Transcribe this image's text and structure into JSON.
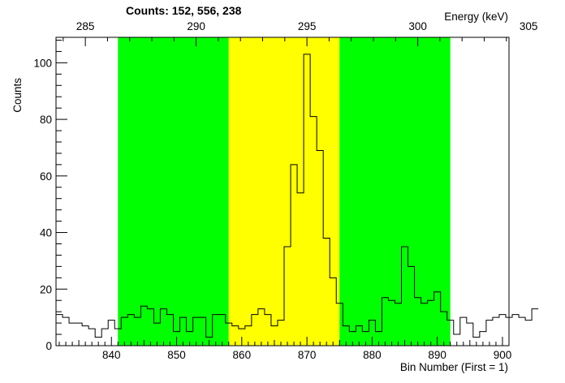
{
  "chart_data": {
    "type": "histogram",
    "title": "Counts:   152,   556,   238",
    "xlabel": "Bin Number (First = 1)",
    "ylabel": "Counts",
    "x2label": "Energy (keV)",
    "xlim": [
      831.5,
      901
    ],
    "ylim": [
      0,
      109
    ],
    "x_ticks": [
      840,
      850,
      860,
      870,
      880,
      890,
      900
    ],
    "y_ticks": [
      0,
      20,
      40,
      60,
      80,
      100
    ],
    "x2_ticks": [
      {
        "label": "285",
        "bin": 836
      },
      {
        "label": "290",
        "bin": 853
      },
      {
        "label": "295",
        "bin": 870
      },
      {
        "label": "300",
        "bin": 887
      },
      {
        "label": "305",
        "bin": 904
      }
    ],
    "regions": [
      {
        "from": 841,
        "to": 858,
        "color": "#00ff00"
      },
      {
        "from": 858,
        "to": 875,
        "color": "#ffff00"
      },
      {
        "from": 875,
        "to": 892,
        "color": "#00ff00"
      }
    ],
    "bin_edges_start": 831.5,
    "bin_width": 1,
    "values": [
      11,
      10,
      8,
      8,
      7,
      6,
      3,
      6,
      9,
      6,
      10,
      11,
      10,
      14,
      13,
      8,
      13,
      11,
      5,
      10,
      5,
      10,
      10,
      3,
      11,
      11,
      8,
      7,
      6,
      7,
      11,
      13,
      11,
      7,
      9,
      35,
      64,
      54,
      103,
      81,
      69,
      38,
      24,
      15,
      7,
      5,
      7,
      5,
      9,
      5,
      17,
      16,
      15,
      35,
      28,
      17,
      15,
      16,
      19,
      12,
      9,
      4,
      10,
      8,
      3,
      5,
      9,
      10,
      11,
      10,
      11,
      10,
      9,
      13
    ],
    "line_color": "#000000",
    "frame_color": "#000000"
  }
}
